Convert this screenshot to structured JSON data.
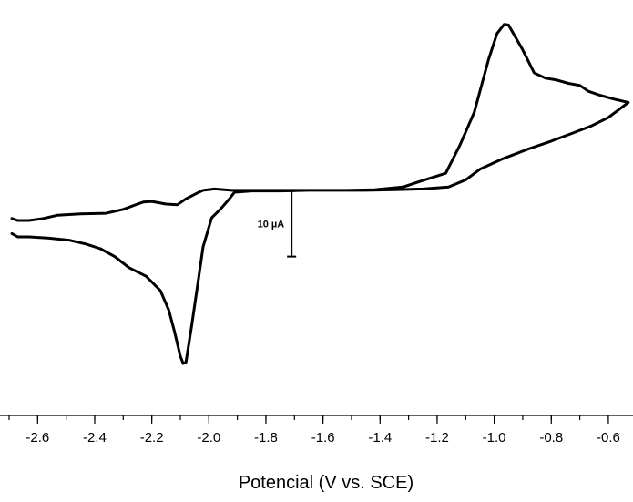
{
  "chart_data": {
    "type": "line",
    "title": "",
    "xlabel": "Potencial (V vs. SCE)",
    "ylabel": "",
    "xlim": [
      -2.7,
      -0.52
    ],
    "ylim": [
      -32,
      28
    ],
    "x_ticks": [
      "-2.6",
      "-2.4",
      "-2.2",
      "-2.0",
      "-1.8",
      "-1.6",
      "-1.4",
      "-1.2",
      "-1.0",
      "-0.8",
      "-0.6"
    ],
    "x_tick_values": [
      -2.6,
      -2.4,
      -2.2,
      -2.0,
      -1.8,
      -1.6,
      -1.4,
      -1.2,
      -1.0,
      -0.8,
      -0.6
    ],
    "y_axis_visible": false,
    "grid": false,
    "line_color": "#000000",
    "scale_bar": {
      "label": "10 µA",
      "x": -1.71,
      "y_top": 0,
      "y_bottom": -10
    },
    "series": [
      {
        "name": "",
        "points": [
          [
            -2.69,
            -4.2
          ],
          [
            -2.67,
            -4.5
          ],
          [
            -2.63,
            -4.5
          ],
          [
            -2.58,
            -4.2
          ],
          [
            -2.53,
            -3.7
          ],
          [
            -2.45,
            -3.5
          ],
          [
            -2.36,
            -3.4
          ],
          [
            -2.3,
            -2.8
          ],
          [
            -2.25,
            -2.0
          ],
          [
            -2.23,
            -1.7
          ],
          [
            -2.2,
            -1.6
          ],
          [
            -2.15,
            -2.0
          ],
          [
            -2.11,
            -2.1
          ],
          [
            -2.08,
            -1.2
          ],
          [
            -2.04,
            -0.3
          ],
          [
            -2.02,
            0.1
          ],
          [
            -1.98,
            0.3
          ],
          [
            -1.92,
            0.1
          ],
          [
            -1.85,
            0.1
          ],
          [
            -1.78,
            0.1
          ],
          [
            -1.7,
            0.1
          ],
          [
            -1.62,
            0.1
          ],
          [
            -1.52,
            0.1
          ],
          [
            -1.42,
            0.2
          ],
          [
            -1.32,
            0.6
          ],
          [
            -1.25,
            1.6
          ],
          [
            -1.17,
            2.7
          ],
          [
            -1.12,
            7.0
          ],
          [
            -1.07,
            12.0
          ],
          [
            -1.02,
            20.0
          ],
          [
            -0.99,
            24.0
          ],
          [
            -0.965,
            25.4
          ],
          [
            -0.95,
            25.3
          ],
          [
            -0.9,
            21.5
          ],
          [
            -0.86,
            18.0
          ],
          [
            -0.82,
            17.2
          ],
          [
            -0.78,
            16.9
          ],
          [
            -0.74,
            16.4
          ],
          [
            -0.7,
            16.1
          ],
          [
            -0.67,
            15.2
          ],
          [
            -0.63,
            14.6
          ],
          [
            -0.58,
            14.0
          ],
          [
            -0.53,
            13.5
          ],
          [
            -0.56,
            12.5
          ],
          [
            -0.6,
            11.2
          ],
          [
            -0.66,
            9.9
          ],
          [
            -0.72,
            8.9
          ],
          [
            -0.8,
            7.6
          ],
          [
            -0.88,
            6.4
          ],
          [
            -0.97,
            4.9
          ],
          [
            -1.05,
            3.3
          ],
          [
            -1.1,
            1.7
          ],
          [
            -1.16,
            0.6
          ],
          [
            -1.25,
            0.3
          ],
          [
            -1.35,
            0.2
          ],
          [
            -1.45,
            0.1
          ],
          [
            -1.55,
            0.1
          ],
          [
            -1.65,
            0.1
          ],
          [
            -1.75,
            0.0
          ],
          [
            -1.85,
            0.0
          ],
          [
            -1.91,
            -0.2
          ],
          [
            -1.93,
            -1.3
          ],
          [
            -1.96,
            -2.8
          ],
          [
            -1.99,
            -4.1
          ],
          [
            -2.02,
            -8.5
          ],
          [
            -2.04,
            -14.5
          ],
          [
            -2.06,
            -20.5
          ],
          [
            -2.08,
            -26.1
          ],
          [
            -2.09,
            -26.3
          ],
          [
            -2.1,
            -25.2
          ],
          [
            -2.12,
            -21.5
          ],
          [
            -2.14,
            -18.2
          ],
          [
            -2.17,
            -15.2
          ],
          [
            -2.22,
            -13.0
          ],
          [
            -2.28,
            -11.7
          ],
          [
            -2.33,
            -10.0
          ],
          [
            -2.38,
            -8.8
          ],
          [
            -2.43,
            -8.1
          ],
          [
            -2.49,
            -7.5
          ],
          [
            -2.56,
            -7.2
          ],
          [
            -2.63,
            -7.0
          ],
          [
            -2.67,
            -7.0
          ],
          [
            -2.69,
            -6.5
          ]
        ]
      }
    ]
  }
}
